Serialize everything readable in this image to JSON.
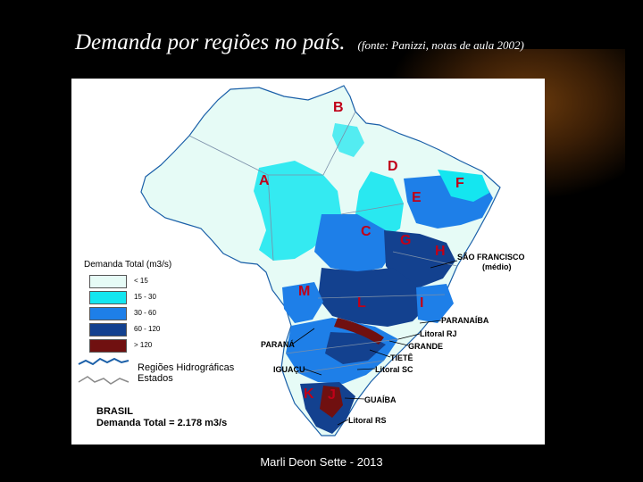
{
  "title": {
    "main": "Demanda por regiões no país.",
    "source": "(fonte: Panizzi, notas de aula 2002)"
  },
  "footer": "Marli Deon Sette - 2013",
  "legend": {
    "title": "Demanda Total (m3/s)",
    "classes": [
      {
        "label": "< 15",
        "color": "#e6fbf6"
      },
      {
        "label": "15 - 30",
        "color": "#14e6f0"
      },
      {
        "label": "30 - 60",
        "color": "#1e7fe8"
      },
      {
        "label": "60 - 120",
        "color": "#13418f"
      },
      {
        "label": "> 120",
        "color": "#701010"
      }
    ],
    "lines": [
      "Regiões Hidrográficas",
      "Estados"
    ]
  },
  "summary": {
    "line1": "BRASIL",
    "line2": "Demanda Total = 2.178 m3/s"
  },
  "regions": [
    "A",
    "B",
    "C",
    "D",
    "E",
    "F",
    "G",
    "H",
    "I",
    "J",
    "K",
    "L",
    "M"
  ],
  "basins": [
    {
      "id": "sao-francisco",
      "lines": [
        "SÃO FRANCISCO",
        "(médio)"
      ]
    },
    {
      "id": "paranaiba",
      "lines": [
        "PARANAÍBA"
      ]
    },
    {
      "id": "litoral-rj",
      "lines": [
        "Litoral RJ"
      ]
    },
    {
      "id": "grande",
      "lines": [
        "GRANDE"
      ]
    },
    {
      "id": "parana",
      "lines": [
        "PARANÁ"
      ]
    },
    {
      "id": "tiete",
      "lines": [
        "TIETÊ"
      ]
    },
    {
      "id": "litoral-sc",
      "lines": [
        "Litoral SC"
      ]
    },
    {
      "id": "iguacu",
      "lines": [
        "IGUAÇU"
      ]
    },
    {
      "id": "guaiba",
      "lines": [
        "GUAÍBA"
      ]
    },
    {
      "id": "litoral-rs",
      "lines": [
        "Litoral RS"
      ]
    }
  ]
}
